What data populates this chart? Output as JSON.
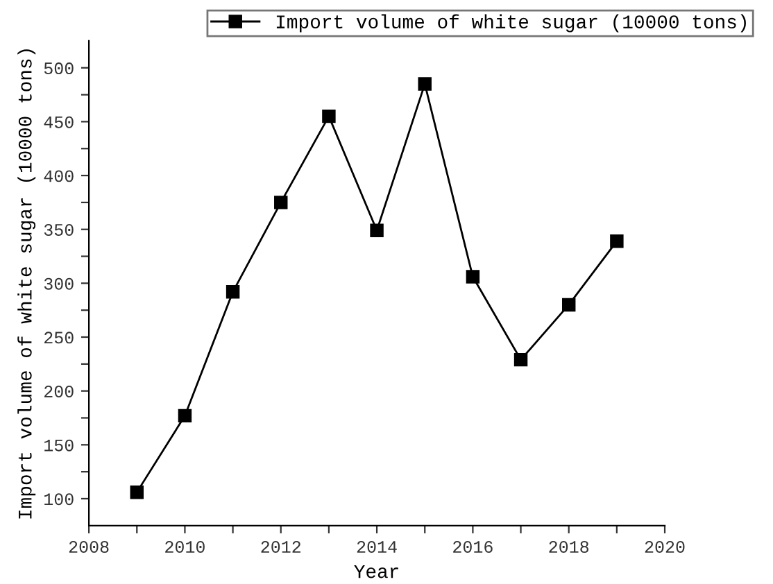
{
  "chart_data": {
    "type": "line",
    "xlabel": "Year",
    "ylabel": "Import volume of white sugar (10000 tons)",
    "x": [
      2009,
      2010,
      2011,
      2012,
      2013,
      2014,
      2015,
      2016,
      2017,
      2018,
      2019
    ],
    "series": [
      {
        "name": "Import volume of white sugar (10000 tons)",
        "color": "#000000",
        "values": [
          106,
          177,
          292,
          375,
          455,
          349,
          485,
          306,
          229,
          280,
          339
        ]
      }
    ],
    "marker": "square",
    "line_style": "solid",
    "legend": "top right",
    "grid": false,
    "xlim": [
      2008,
      2020
    ],
    "ylim": [
      75,
      525
    ],
    "xticks": [
      2008,
      {
        "value": 2009,
        "label": null
      },
      2010,
      {
        "value": 2011,
        "label": null
      },
      2012,
      {
        "value": 2013,
        "label": null
      },
      2014,
      {
        "value": 2015,
        "label": null
      },
      2016,
      {
        "value": 2017,
        "label": null
      },
      2018,
      {
        "value": 2019,
        "label": null
      },
      2020
    ],
    "yticks": [
      100,
      {
        "value": 125,
        "label": null
      },
      150,
      {
        "value": 175,
        "label": null
      },
      200,
      {
        "value": 225,
        "label": null
      },
      250,
      {
        "value": 275,
        "label": null
      },
      300,
      {
        "value": 325,
        "label": null
      },
      350,
      {
        "value": 375,
        "label": null
      },
      400,
      {
        "value": 425,
        "label": null
      },
      450,
      {
        "value": 475,
        "label": null
      },
      500
    ]
  }
}
